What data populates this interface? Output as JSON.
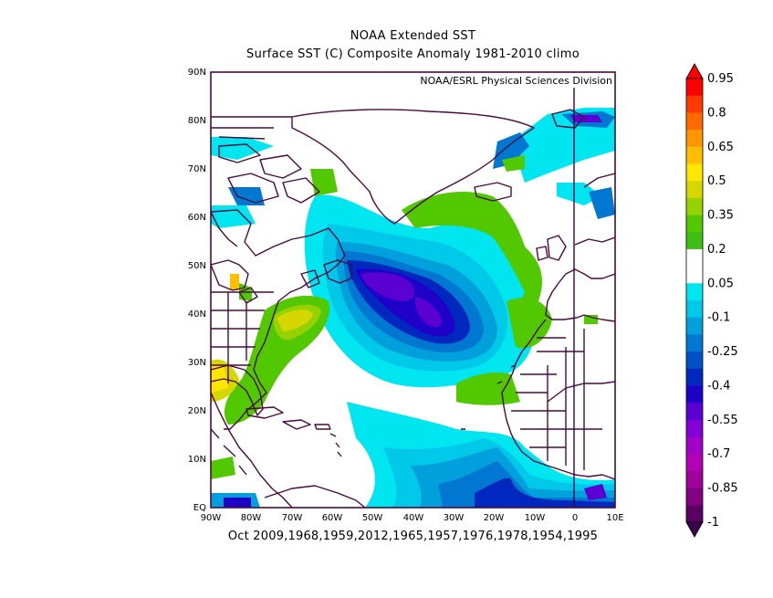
{
  "header": {
    "title_line1": "NOAA Extended SST",
    "title_line2": "Surface SST (C) Composite Anomaly 1981-2010 climo"
  },
  "map": {
    "credit": "NOAA/ESRL Physical Sciences Division",
    "region": "North Atlantic",
    "lat_labels": [
      "90N",
      "80N",
      "70N",
      "60N",
      "50N",
      "40N",
      "30N",
      "20N",
      "10N",
      "EQ"
    ],
    "lon_labels": [
      "90W",
      "80W",
      "70W",
      "60W",
      "50W",
      "40W",
      "30W",
      "20W",
      "10W",
      "0",
      "10E"
    ]
  },
  "footer": {
    "composite_label": "Oct 2009,1968,1959,2012,1965,1957,1976,1978,1954,1995"
  },
  "colorbar": {
    "labels": [
      "0.95",
      "0.8",
      "0.65",
      "0.5",
      "0.35",
      "0.2",
      "0.05",
      "-0.1",
      "-0.25",
      "-0.4",
      "-0.55",
      "-0.7",
      "-0.85",
      "-1"
    ],
    "colors": [
      "#ff0000",
      "#ff3a00",
      "#ff6a00",
      "#ff9600",
      "#ffbe00",
      "#ffe600",
      "#d6d600",
      "#96d200",
      "#52c800",
      "#3cbe14",
      "#ffffff",
      "#ffffff",
      "#00e6f0",
      "#00c8e8",
      "#00a0dc",
      "#0078d2",
      "#0050c8",
      "#0028be",
      "#1e00c8",
      "#5a00d2",
      "#8200d7",
      "#a000c8",
      "#b400b4",
      "#a0009b",
      "#820082",
      "#5a0064"
    ],
    "arrow_top_color": "#ff0000",
    "arrow_bottom_color": "#3c0050"
  }
}
